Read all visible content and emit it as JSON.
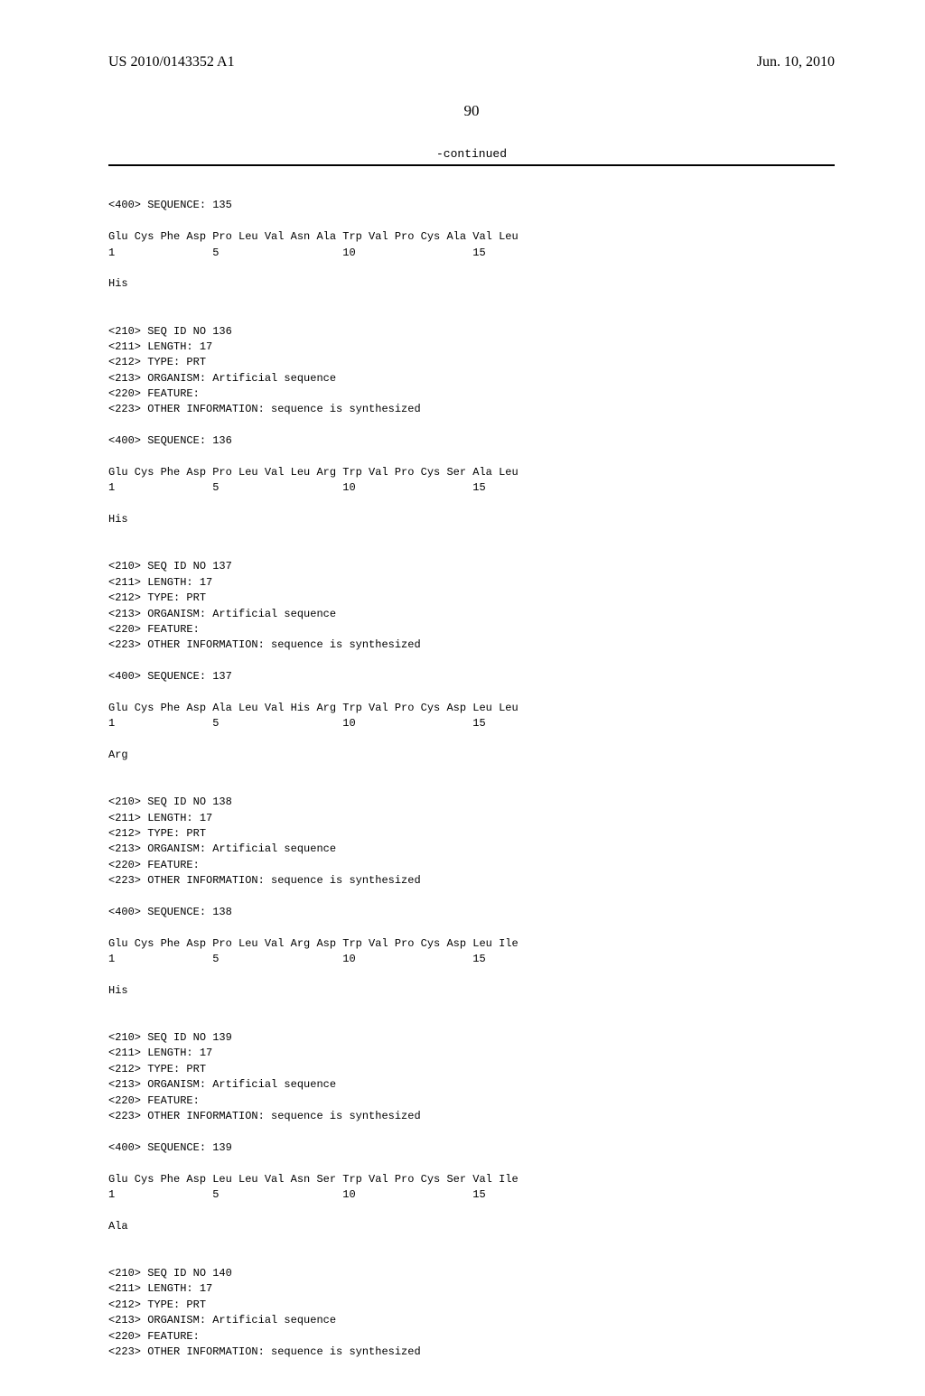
{
  "header": {
    "publication_number": "US 2010/0143352 A1",
    "publication_date": "Jun. 10, 2010"
  },
  "page_number": "90",
  "continued_label": "-continued",
  "sequences": [
    {
      "seq_label": "<400> SEQUENCE: 135",
      "residues": "Glu Cys Phe Asp Pro Leu Val Asn Ala Trp Val Pro Cys Ala Val Leu",
      "positions": "1               5                   10                  15",
      "terminal": "His"
    },
    {
      "header_lines": [
        "<210> SEQ ID NO 136",
        "<211> LENGTH: 17",
        "<212> TYPE: PRT",
        "<213> ORGANISM: Artificial sequence",
        "<220> FEATURE:",
        "<223> OTHER INFORMATION: sequence is synthesized"
      ],
      "seq_label": "<400> SEQUENCE: 136",
      "residues": "Glu Cys Phe Asp Pro Leu Val Leu Arg Trp Val Pro Cys Ser Ala Leu",
      "positions": "1               5                   10                  15",
      "terminal": "His"
    },
    {
      "header_lines": [
        "<210> SEQ ID NO 137",
        "<211> LENGTH: 17",
        "<212> TYPE: PRT",
        "<213> ORGANISM: Artificial sequence",
        "<220> FEATURE:",
        "<223> OTHER INFORMATION: sequence is synthesized"
      ],
      "seq_label": "<400> SEQUENCE: 137",
      "residues": "Glu Cys Phe Asp Ala Leu Val His Arg Trp Val Pro Cys Asp Leu Leu",
      "positions": "1               5                   10                  15",
      "terminal": "Arg"
    },
    {
      "header_lines": [
        "<210> SEQ ID NO 138",
        "<211> LENGTH: 17",
        "<212> TYPE: PRT",
        "<213> ORGANISM: Artificial sequence",
        "<220> FEATURE:",
        "<223> OTHER INFORMATION: sequence is synthesized"
      ],
      "seq_label": "<400> SEQUENCE: 138",
      "residues": "Glu Cys Phe Asp Pro Leu Val Arg Asp Trp Val Pro Cys Asp Leu Ile",
      "positions": "1               5                   10                  15",
      "terminal": "His"
    },
    {
      "header_lines": [
        "<210> SEQ ID NO 139",
        "<211> LENGTH: 17",
        "<212> TYPE: PRT",
        "<213> ORGANISM: Artificial sequence",
        "<220> FEATURE:",
        "<223> OTHER INFORMATION: sequence is synthesized"
      ],
      "seq_label": "<400> SEQUENCE: 139",
      "residues": "Glu Cys Phe Asp Leu Leu Val Asn Ser Trp Val Pro Cys Ser Val Ile",
      "positions": "1               5                   10                  15",
      "terminal": "Ala"
    },
    {
      "header_lines": [
        "<210> SEQ ID NO 140",
        "<211> LENGTH: 17",
        "<212> TYPE: PRT",
        "<213> ORGANISM: Artificial sequence",
        "<220> FEATURE:",
        "<223> OTHER INFORMATION: sequence is synthesized"
      ]
    }
  ]
}
